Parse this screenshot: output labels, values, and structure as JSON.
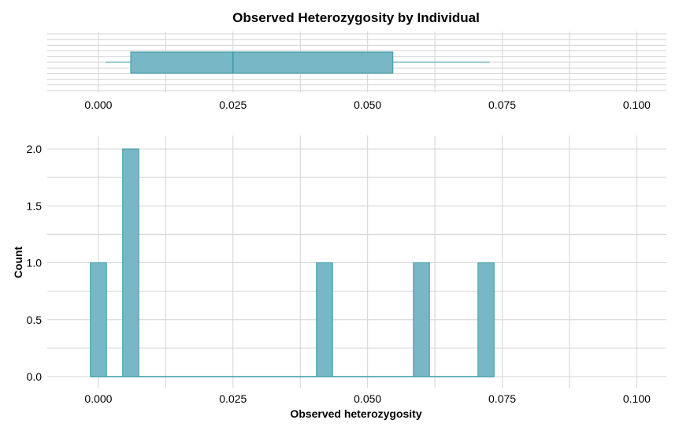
{
  "chart_data": [
    {
      "type": "box",
      "title": "Observed Heterozygosity by Individual",
      "xlabel": "",
      "ylabel": "",
      "xlim": [
        -0.0095,
        0.1055
      ],
      "x_ticks": [
        0.0,
        0.025,
        0.05,
        0.075,
        0.1
      ],
      "x_tick_labels": [
        "0.000",
        "0.025",
        "0.050",
        "0.075",
        "0.100"
      ],
      "whisker_low": 0.0013,
      "q1": 0.006,
      "median": 0.025,
      "q3": 0.0547,
      "whisker_high": 0.0727,
      "grid": true
    },
    {
      "type": "bar",
      "subtype": "histogram",
      "title": "",
      "xlabel": "Observed heterozygosity",
      "ylabel": "Count",
      "xlim": [
        -0.0095,
        0.1055
      ],
      "ylim": [
        -0.05,
        2.1
      ],
      "x_ticks": [
        0.0,
        0.025,
        0.05,
        0.075,
        0.1
      ],
      "x_tick_labels": [
        "0.000",
        "0.025",
        "0.050",
        "0.075",
        "0.100"
      ],
      "y_ticks": [
        0.0,
        0.5,
        1.0,
        1.5,
        2.0
      ],
      "y_tick_labels": [
        "0.0",
        "0.5",
        "1.0",
        "1.5",
        "2.0"
      ],
      "bin_width": 0.003,
      "bins": [
        {
          "x0": -0.0015,
          "x1": 0.0015,
          "count": 1
        },
        {
          "x0": 0.0045,
          "x1": 0.0075,
          "count": 2
        },
        {
          "x0": 0.0405,
          "x1": 0.0435,
          "count": 1
        },
        {
          "x0": 0.0585,
          "x1": 0.0615,
          "count": 1
        },
        {
          "x0": 0.0705,
          "x1": 0.0735,
          "count": 1
        }
      ],
      "baseline_range": [
        -0.0015,
        0.0735
      ],
      "grid": true
    }
  ],
  "colors": {
    "fill": "#78b7c6",
    "stroke": "#3a9aa8",
    "grid": "#d3d3d3"
  }
}
